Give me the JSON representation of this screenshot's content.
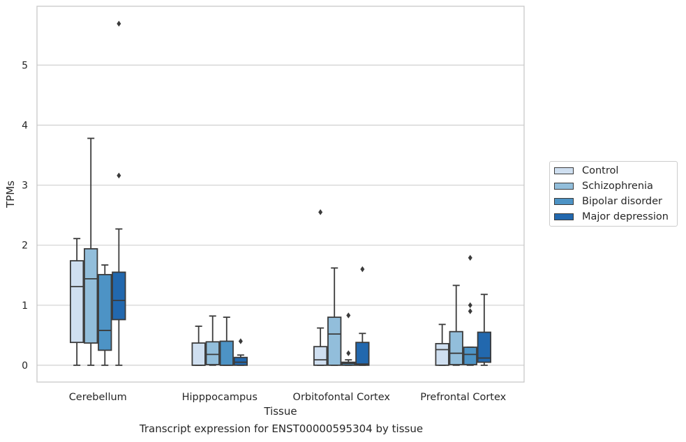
{
  "caption": "Transcript expression for ENST00000595304 by tissue",
  "colors": {
    "series": [
      "#cfdff0",
      "#92bedb",
      "#4d93c5",
      "#2268ae"
    ],
    "edge": "#3b3b3b",
    "grid": "#d0d0d0"
  },
  "chart_data": {
    "type": "box",
    "xlabel": "Tissue",
    "ylabel": "TPMs",
    "ylim": [
      -0.28,
      5.98
    ],
    "yticks": [
      0,
      1,
      2,
      3,
      4,
      5
    ],
    "grid": "horizontal",
    "legend_position": "outside-right",
    "categories": [
      "Cerebellum",
      "Hipppocampus",
      "Orbitofontal Cortex",
      "Prefrontal Cortex"
    ],
    "series": [
      {
        "name": "Control",
        "boxes": [
          {
            "min": 0,
            "q1": 0.38,
            "median": 1.31,
            "q3": 1.74,
            "max": 2.11,
            "outliers": []
          },
          {
            "min": 0,
            "q1": 0,
            "median": 0,
            "q3": 0.37,
            "max": 0.65,
            "outliers": []
          },
          {
            "min": 0,
            "q1": 0,
            "median": 0.09,
            "q3": 0.31,
            "max": 0.62,
            "outliers": [
              2.55
            ]
          },
          {
            "min": 0,
            "q1": 0,
            "median": 0.26,
            "q3": 0.36,
            "max": 0.68,
            "outliers": []
          }
        ]
      },
      {
        "name": "Schizophrenia",
        "boxes": [
          {
            "min": 0,
            "q1": 0.37,
            "median": 1.44,
            "q3": 1.94,
            "max": 3.78,
            "outliers": []
          },
          {
            "min": 0,
            "q1": 0.01,
            "median": 0.18,
            "q3": 0.39,
            "max": 0.82,
            "outliers": []
          },
          {
            "min": 0,
            "q1": 0,
            "median": 0.52,
            "q3": 0.8,
            "max": 1.62,
            "outliers": []
          },
          {
            "min": 0,
            "q1": 0.01,
            "median": 0.2,
            "q3": 0.56,
            "max": 1.33,
            "outliers": []
          }
        ]
      },
      {
        "name": "Bipolar disorder",
        "boxes": [
          {
            "min": 0,
            "q1": 0.25,
            "median": 0.58,
            "q3": 1.51,
            "max": 1.67,
            "outliers": []
          },
          {
            "min": 0,
            "q1": 0,
            "median": 0,
            "q3": 0.4,
            "max": 0.8,
            "outliers": []
          },
          {
            "min": 0,
            "q1": 0,
            "median": 0.03,
            "q3": 0.05,
            "max": 0.09,
            "outliers": [
              0.2,
              0.83
            ]
          },
          {
            "min": 0,
            "q1": 0.01,
            "median": 0.18,
            "q3": 0.3,
            "max": 0.3,
            "outliers": [
              0.9,
              1.0,
              1.79
            ]
          }
        ]
      },
      {
        "name": "Major depression",
        "boxes": [
          {
            "min": 0,
            "q1": 0.76,
            "median": 1.08,
            "q3": 1.55,
            "max": 2.27,
            "outliers": [
              3.16,
              5.69
            ]
          },
          {
            "min": 0,
            "q1": 0,
            "median": 0.05,
            "q3": 0.13,
            "max": 0.17,
            "outliers": [
              0.4
            ]
          },
          {
            "min": 0,
            "q1": 0,
            "median": 0.02,
            "q3": 0.38,
            "max": 0.53,
            "outliers": [
              1.6
            ]
          },
          {
            "min": 0,
            "q1": 0.05,
            "median": 0.12,
            "q3": 0.55,
            "max": 1.18,
            "outliers": []
          }
        ]
      }
    ]
  }
}
